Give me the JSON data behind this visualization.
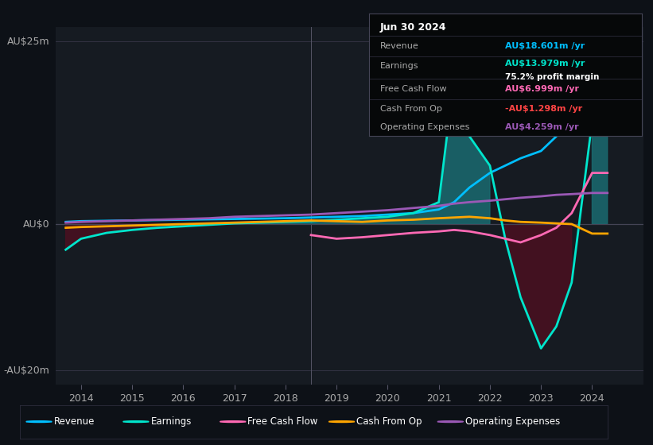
{
  "background_color": "#0d1117",
  "plot_bg_color": "#161b22",
  "ylabel_top": "AU$25m",
  "ylabel_zero": "AU$0",
  "ylabel_bottom": "-AU$20m",
  "ylim": [
    -22,
    27
  ],
  "xlim_min": 2013.5,
  "xlim_max": 2025.0,
  "x_ticks": [
    2014,
    2015,
    2016,
    2017,
    2018,
    2019,
    2020,
    2021,
    2022,
    2023,
    2024
  ],
  "info_box": {
    "date": "Jun 30 2024",
    "revenue_label": "Revenue",
    "revenue_value": "AU$18.601m",
    "revenue_color": "#00bfff",
    "earnings_label": "Earnings",
    "earnings_value": "AU$13.979m",
    "earnings_color": "#00e5cc",
    "profit_margin": "75.2% profit margin",
    "fcf_label": "Free Cash Flow",
    "fcf_value": "AU$6.999m",
    "fcf_color": "#ff69b4",
    "cashop_label": "Cash From Op",
    "cashop_value": "-AU$1.298m",
    "cashop_color": "#ff4444",
    "opex_label": "Operating Expenses",
    "opex_value": "AU$4.259m",
    "opex_color": "#9b59b6"
  },
  "colors": {
    "revenue": "#00bfff",
    "earnings": "#00e5cc",
    "earnings_fill_pos": "#1a6b70",
    "earnings_fill_neg": "#4a1020",
    "fcf": "#ff69b4",
    "cashop": "#ffa500",
    "opex": "#9b59b6"
  },
  "legend": [
    {
      "label": "Revenue",
      "color": "#00bfff"
    },
    {
      "label": "Earnings",
      "color": "#00e5cc"
    },
    {
      "label": "Free Cash Flow",
      "color": "#ff69b4"
    },
    {
      "label": "Cash From Op",
      "color": "#ffa500"
    },
    {
      "label": "Operating Expenses",
      "color": "#9b59b6"
    }
  ],
  "separator_x": 2018.5,
  "vline_color": "#555566"
}
